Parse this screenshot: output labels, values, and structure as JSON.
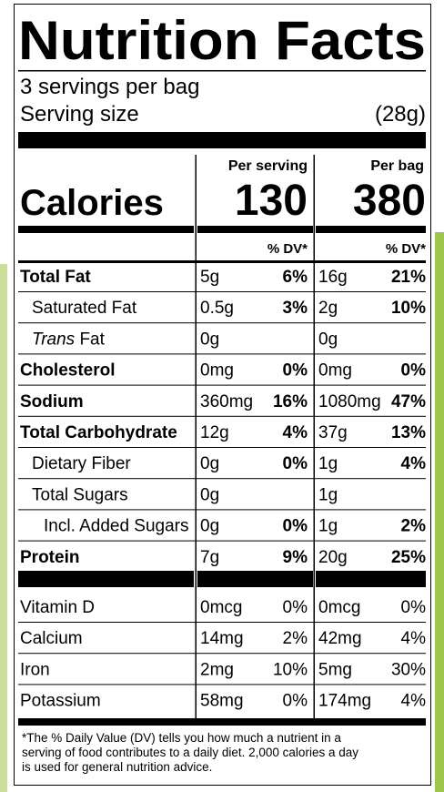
{
  "title": "Nutrition Facts",
  "servings": "3 servings per bag",
  "serving_size_label": "Serving size",
  "serving_size": "(28g)",
  "columns": [
    "Per serving",
    "Per bag"
  ],
  "calories": {
    "label": "Calories",
    "values": [
      "130",
      "380"
    ]
  },
  "dv_header": "% DV*",
  "nutrients": [
    {
      "name": "Total Fat",
      "bold": true,
      "indent": 0,
      "per_serving": {
        "amount": "5g",
        "dv": "6%"
      },
      "per_bag": {
        "amount": "16g",
        "dv": "21%"
      }
    },
    {
      "name": "Saturated Fat",
      "bold": false,
      "indent": 1,
      "per_serving": {
        "amount": "0.5g",
        "dv": "3%"
      },
      "per_bag": {
        "amount": "2g",
        "dv": "10%"
      }
    },
    {
      "italic_prefix": "Trans",
      "name": "Fat",
      "bold": false,
      "indent": 1,
      "per_serving": {
        "amount": "0g"
      },
      "per_bag": {
        "amount": "0g"
      }
    },
    {
      "name": "Cholesterol",
      "bold": true,
      "indent": 0,
      "per_serving": {
        "amount": "0mg",
        "dv": "0%"
      },
      "per_bag": {
        "amount": "0mg",
        "dv": "0%"
      }
    },
    {
      "name": "Sodium",
      "bold": true,
      "indent": 0,
      "per_serving": {
        "amount": "360mg",
        "dv": "16%"
      },
      "per_bag": {
        "amount": "1080mg",
        "dv": "47%"
      }
    },
    {
      "name": "Total Carbohydrate",
      "bold": true,
      "indent": 0,
      "per_serving": {
        "amount": "12g",
        "dv": "4%"
      },
      "per_bag": {
        "amount": "37g",
        "dv": "13%"
      }
    },
    {
      "name": "Dietary Fiber",
      "bold": false,
      "indent": 1,
      "per_serving": {
        "amount": "0g",
        "dv": "0%"
      },
      "per_bag": {
        "amount": "1g",
        "dv": "4%"
      }
    },
    {
      "name": "Total Sugars",
      "bold": false,
      "indent": 1,
      "per_serving": {
        "amount": "0g"
      },
      "per_bag": {
        "amount": "1g"
      }
    },
    {
      "name": "Incl. Added Sugars",
      "bold": false,
      "indent": 2,
      "per_serving": {
        "amount": "0g",
        "dv": "0%"
      },
      "per_bag": {
        "amount": "1g",
        "dv": "2%"
      }
    },
    {
      "name": "Protein",
      "bold": true,
      "indent": 0,
      "per_serving": {
        "amount": "7g",
        "dv": "9%"
      },
      "per_bag": {
        "amount": "20g",
        "dv": "25%"
      }
    }
  ],
  "vitamins": [
    {
      "name": "Vitamin D",
      "per_serving": {
        "amount": "0mcg",
        "dv": "0%"
      },
      "per_bag": {
        "amount": "0mcg",
        "dv": "0%"
      }
    },
    {
      "name": "Calcium",
      "per_serving": {
        "amount": "14mg",
        "dv": "2%"
      },
      "per_bag": {
        "amount": "42mg",
        "dv": "4%"
      }
    },
    {
      "name": "Iron",
      "per_serving": {
        "amount": "2mg",
        "dv": "10%"
      },
      "per_bag": {
        "amount": "5mg",
        "dv": "30%"
      }
    },
    {
      "name": "Potassium",
      "per_serving": {
        "amount": "58mg",
        "dv": "0%"
      },
      "per_bag": {
        "amount": "174mg",
        "dv": "4%"
      }
    }
  ],
  "footnote": [
    "*The % Daily Value (DV) tells you how much a nutrient in a",
    "serving of food contributes to a daily diet. 2,000 calories a day",
    "is used for general nutrition advice."
  ]
}
